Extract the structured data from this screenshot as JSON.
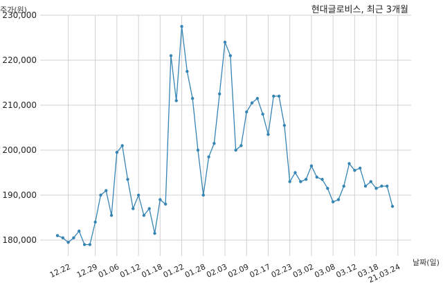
{
  "chart_data": {
    "type": "line",
    "title": "현대글로비스, 최근 3개월",
    "xlabel": "날짜(일)",
    "ylabel": "주가(원)",
    "ylim": [
      176000,
      230000
    ],
    "yticks": [
      180000,
      190000,
      200000,
      210000,
      220000,
      230000
    ],
    "ytick_labels": [
      "180,000",
      "190,000",
      "200,000",
      "210,000",
      "220,000",
      "230,000"
    ],
    "xtick_labels": [
      "12.22",
      "12.29",
      "01.06",
      "01.12",
      "01.18",
      "01.22",
      "01.28",
      "02.03",
      "02.09",
      "02.17",
      "02.23",
      "03.02",
      "03.08",
      "03.12",
      "03.18",
      "21.03.24"
    ],
    "xtick_index": [
      2,
      7,
      11,
      15,
      19,
      23,
      27,
      31,
      35,
      39,
      43,
      47,
      51,
      55,
      59,
      63
    ],
    "grid": true,
    "color": "#3484b4",
    "series": [
      {
        "values": [
          181000,
          180500,
          179500,
          180500,
          182000,
          179000,
          179000,
          184000,
          190000,
          191000,
          185500,
          199500,
          201000,
          193500,
          187000,
          190000,
          185500,
          187000,
          181500,
          189000,
          188000,
          221000,
          211000,
          227500,
          217500,
          211500,
          200000,
          190000,
          198500,
          201500,
          212500,
          224000,
          221000,
          200000,
          201000,
          208500,
          210500,
          211500,
          208000,
          203500,
          212000,
          212000,
          205500,
          193000,
          195000,
          193000,
          193500,
          196500,
          194000,
          193500,
          191500,
          188500,
          189000,
          192000,
          197000,
          195500,
          196000,
          192000,
          193000,
          191500,
          192000,
          192000,
          187500
        ]
      }
    ]
  }
}
